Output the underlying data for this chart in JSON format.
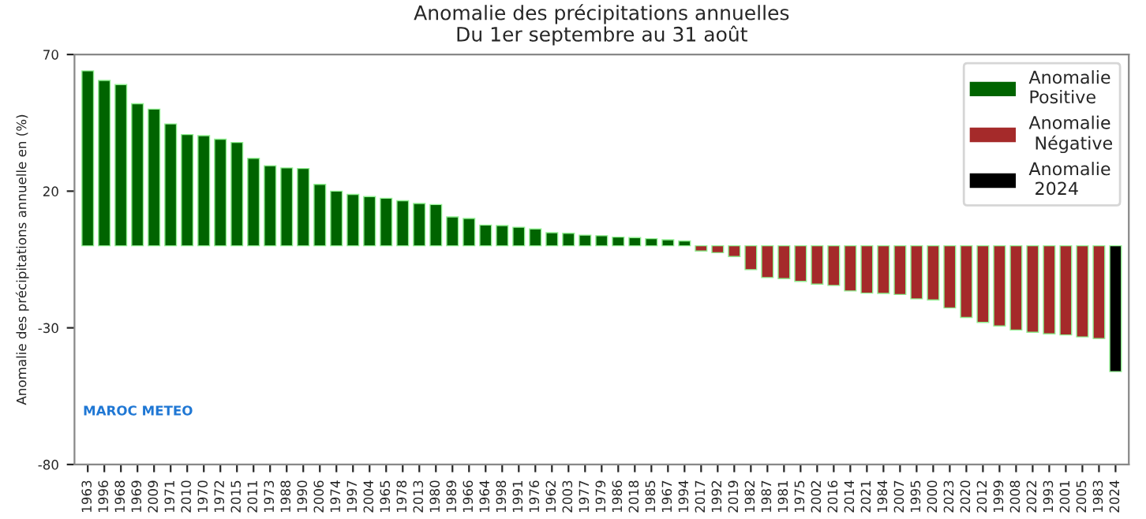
{
  "chart_data": {
    "type": "bar",
    "title": "Anomalie des précipitations annuelles\nDu 1er septembre au 31 août",
    "ylabel": "Anomalie des précipitations annuelle en (%)",
    "categories": [
      "1963",
      "1996",
      "1968",
      "1969",
      "2009",
      "1971",
      "2010",
      "1970",
      "1972",
      "2015",
      "2011",
      "1973",
      "1988",
      "1990",
      "2006",
      "1974",
      "1997",
      "2004",
      "1965",
      "1978",
      "2013",
      "1980",
      "1989",
      "1966",
      "1964",
      "1998",
      "1991",
      "1976",
      "1962",
      "2003",
      "1977",
      "1979",
      "1986",
      "2018",
      "1985",
      "1967",
      "1994",
      "2017",
      "1992",
      "2019",
      "1982",
      "1987",
      "1981",
      "1975",
      "2002",
      "2016",
      "2014",
      "2021",
      "1984",
      "2007",
      "1995",
      "2000",
      "2023",
      "2020",
      "2012",
      "1999",
      "2008",
      "2022",
      "1993",
      "2001",
      "2005",
      "1983",
      "2024"
    ],
    "series": [
      {
        "name": "Anomalie\nPositive",
        "color": "#006400",
        "values": [
          64,
          60.5,
          59,
          52,
          50,
          44.6,
          40.7,
          40.3,
          39,
          37.8,
          32,
          29.3,
          28.5,
          28.3,
          22.5,
          20,
          18.8,
          18,
          17.4,
          16.5,
          15.5,
          15.1,
          10.6,
          10,
          7.6,
          7.4,
          6.8,
          6.2,
          4.8,
          4.6,
          3.9,
          3.7,
          3.2,
          3,
          2.6,
          2.2,
          1.8,
          null,
          null,
          null,
          null,
          null,
          null,
          null,
          null,
          null,
          null,
          null,
          null,
          null,
          null,
          null,
          null,
          null,
          null,
          null,
          null,
          null,
          null,
          null,
          null,
          null,
          null
        ]
      },
      {
        "name": "Anomalie\n Négative",
        "color": "#a52a2a",
        "values": [
          null,
          null,
          null,
          null,
          null,
          null,
          null,
          null,
          null,
          null,
          null,
          null,
          null,
          null,
          null,
          null,
          null,
          null,
          null,
          null,
          null,
          null,
          null,
          null,
          null,
          null,
          null,
          null,
          null,
          null,
          null,
          null,
          null,
          null,
          null,
          null,
          null,
          -1.9,
          -2.5,
          -3.9,
          -8.7,
          -11.6,
          -12,
          -13,
          -14,
          -14.5,
          -16.5,
          -17.3,
          -17.4,
          -17.8,
          -19.4,
          -19.8,
          -22.7,
          -26.2,
          -28,
          -29.3,
          -30.8,
          -31.6,
          -32.2,
          -32.6,
          -33.3,
          -33.9,
          null
        ]
      },
      {
        "name": "Anomalie\n 2024",
        "color": "#000000",
        "values": [
          null,
          null,
          null,
          null,
          null,
          null,
          null,
          null,
          null,
          null,
          null,
          null,
          null,
          null,
          null,
          null,
          null,
          null,
          null,
          null,
          null,
          null,
          null,
          null,
          null,
          null,
          null,
          null,
          null,
          null,
          null,
          null,
          null,
          null,
          null,
          null,
          null,
          null,
          null,
          null,
          null,
          null,
          null,
          null,
          null,
          null,
          null,
          null,
          null,
          null,
          null,
          null,
          null,
          null,
          null,
          null,
          null,
          null,
          null,
          null,
          null,
          null,
          -46
        ]
      }
    ],
    "ylim": [
      -80,
      70
    ],
    "yticks": [
      70,
      20,
      -30,
      -80
    ],
    "annotations": [
      "MAROC METEO"
    ],
    "legend": "top right",
    "grid": false
  }
}
